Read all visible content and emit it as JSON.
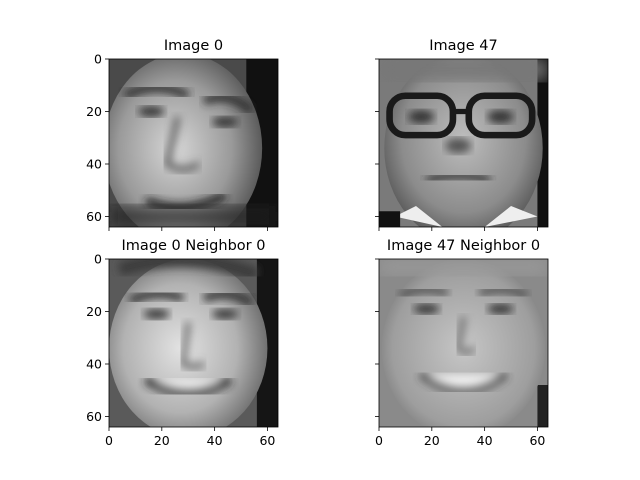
{
  "chart_data": [
    {
      "type": "image",
      "title": "Image 0",
      "face": "arnold-a",
      "xlim": [
        0,
        64
      ],
      "ylim": [
        64,
        0
      ],
      "xticks": [],
      "yticks": [
        0,
        20,
        40,
        60
      ],
      "show_yticklabels": true,
      "show_xticklabels": false
    },
    {
      "type": "image",
      "title": "Image 47",
      "face": "glasses",
      "xlim": [
        0,
        64
      ],
      "ylim": [
        64,
        0
      ],
      "xticks": [],
      "yticks": [
        0,
        20,
        40,
        60
      ],
      "show_yticklabels": false,
      "show_xticklabels": false
    },
    {
      "type": "image",
      "title": "Image 0 Neighbor 0",
      "face": "arnold-b",
      "xlim": [
        0,
        64
      ],
      "ylim": [
        64,
        0
      ],
      "xticks": [
        0,
        20,
        40,
        60
      ],
      "yticks": [
        0,
        20,
        40,
        60
      ],
      "show_yticklabels": true,
      "show_xticklabels": true
    },
    {
      "type": "image",
      "title": "Image 47 Neighbor 0",
      "face": "smile",
      "xlim": [
        0,
        64
      ],
      "ylim": [
        64,
        0
      ],
      "xticks": [
        0,
        20,
        40,
        60
      ],
      "yticks": [
        0,
        20,
        40,
        60
      ],
      "show_yticklabels": false,
      "show_xticklabels": true
    }
  ],
  "colors": {
    "axis": "#000000",
    "background": "#ffffff"
  }
}
